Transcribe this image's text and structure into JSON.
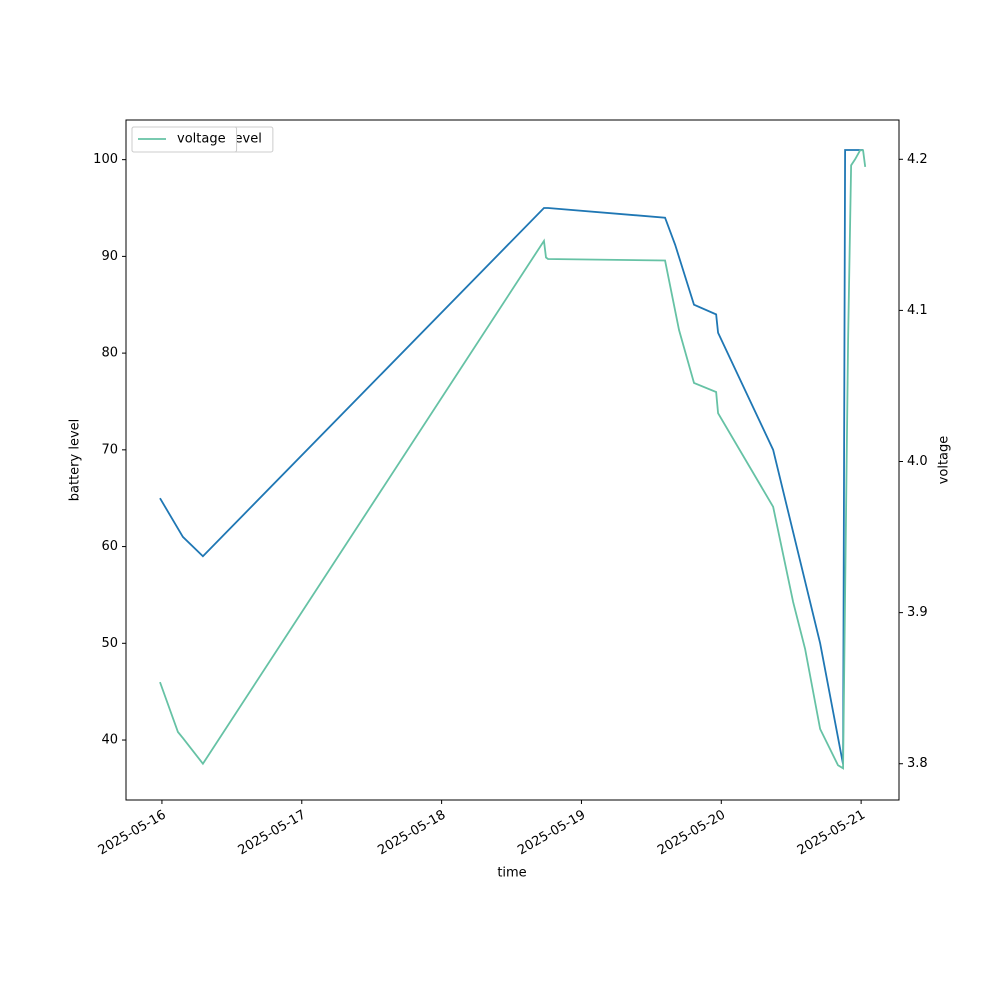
{
  "chart_data": {
    "type": "line",
    "x_label": "time",
    "y_label": "battery level",
    "y2_label": "voltage",
    "xlim": [
      "2025-05-15T17:50",
      "2025-05-21T06:30"
    ],
    "xticks": [
      "2025-05-16",
      "2025-05-17",
      "2025-05-18",
      "2025-05-19",
      "2025-05-20",
      "2025-05-21"
    ],
    "ylim": [
      33.8,
      104.1
    ],
    "yticks": [
      40,
      50,
      60,
      70,
      80,
      90,
      100
    ],
    "y2lim": [
      3.776,
      4.226
    ],
    "y2ticks": [
      3.8,
      3.9,
      {
        "value": 4,
        "label": "4.0"
      },
      4.1,
      4.2
    ],
    "grid": false,
    "legend": "upper left",
    "series": [
      {
        "name": "battery_level",
        "color": "#1f77b4",
        "x": [
          "2025-05-15T23:40",
          "2025-05-16T03:36",
          "2025-05-16T07:02",
          "2025-05-18T17:34",
          "2025-05-18T18:16",
          "2025-05-19T14:21",
          "2025-05-19T16:05",
          "2025-05-19T19:19",
          "2025-05-19T23:07",
          "2025-05-19T23:27",
          "2025-05-20T08:54",
          "2025-05-20T16:58",
          "2025-05-20T20:54",
          "2025-05-20T21:15",
          "2025-05-21T00:20"
        ],
        "values": [
          65,
          61,
          59,
          95,
          95,
          94,
          91.2,
          85,
          84,
          82.1,
          70,
          50,
          37.5,
          101,
          101
        ]
      },
      {
        "name": "voltage",
        "color": "#66c2a5",
        "axis": "y2",
        "x": [
          "2025-05-15T23:40",
          "2025-05-16T02:45",
          "2025-05-16T03:36",
          "2025-05-16T07:02",
          "2025-05-18T17:34",
          "2025-05-18T17:55",
          "2025-05-18T18:16",
          "2025-05-19T14:21",
          "2025-05-19T16:45",
          "2025-05-19T19:19",
          "2025-05-19T23:07",
          "2025-05-19T23:27",
          "2025-05-20T08:54",
          "2025-05-20T12:20",
          "2025-05-20T14:23",
          "2025-05-20T16:58",
          "2025-05-20T20:02",
          "2025-05-20T20:54",
          "2025-05-20T21:15",
          "2025-05-20T21:46",
          "2025-05-20T22:17",
          "2025-05-20T22:58",
          "2025-05-20T23:50",
          "2025-05-21T00:20",
          "2025-05-21T00:42"
        ],
        "values": [
          3.854,
          3.821,
          3.817,
          3.8,
          4.146,
          4.135,
          4.134,
          4.133,
          4.087,
          4.052,
          4.046,
          4.032,
          3.97,
          3.907,
          3.876,
          3.823,
          3.799,
          3.797,
          3.913,
          4.081,
          4.196,
          4.2,
          4.206,
          4.206,
          4.195
        ]
      }
    ]
  }
}
